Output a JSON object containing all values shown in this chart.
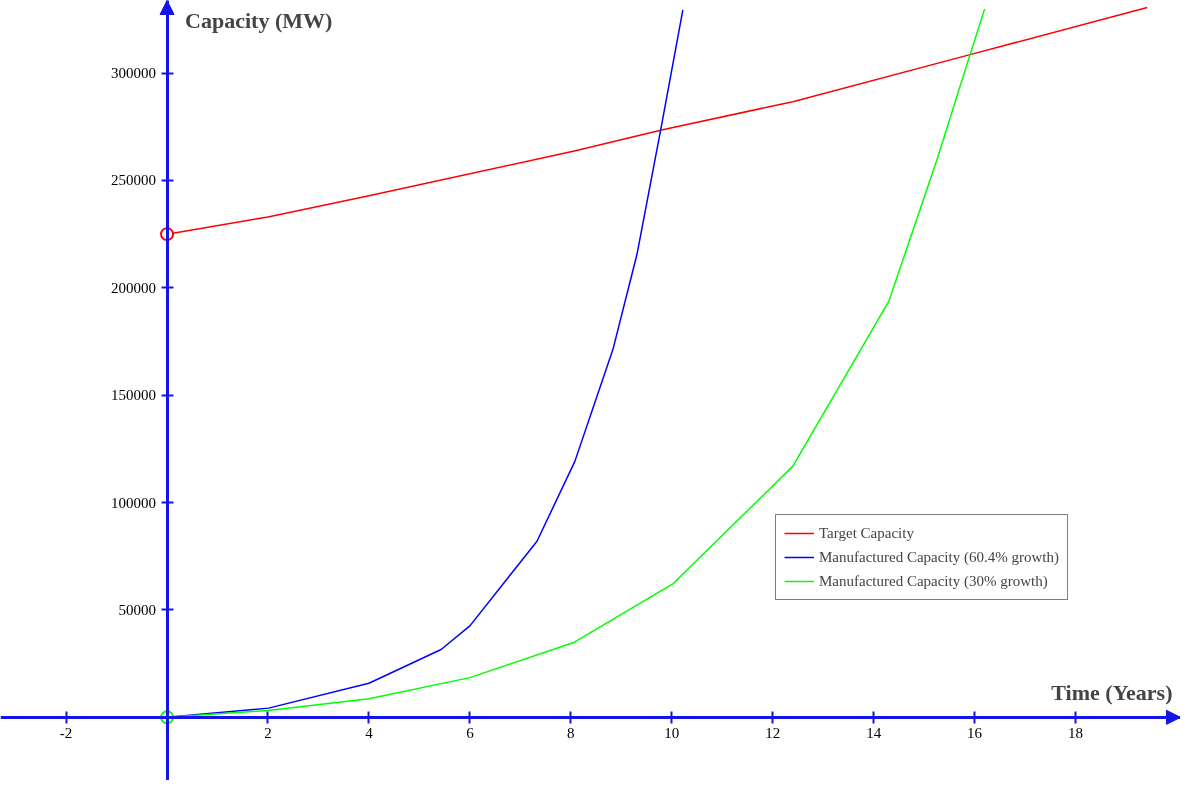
{
  "chart_data": {
    "type": "line",
    "xlabel": "Time (Years)",
    "ylabel": "Capacity (MW)",
    "xlim": [
      -3.3,
      20.08
    ],
    "ylim": [
      -29400,
      333800
    ],
    "xticks": [
      -2,
      2,
      4,
      6,
      8,
      10,
      12,
      14,
      16,
      18
    ],
    "yticks": [
      50000,
      100000,
      150000,
      200000,
      250000,
      300000
    ],
    "grid": false,
    "legend": "right",
    "series": [
      {
        "name": "Target Capacity",
        "color": "#ff0000",
        "x": [
          0,
          2,
          4,
          8.07,
          9.82,
          12.4,
          15.91,
          19.42
        ],
        "values": [
          225000,
          233000,
          242900,
          263700,
          273600,
          286700,
          308600,
          330500
        ]
      },
      {
        "name": "Manufactured Capacity (60.4% growth)",
        "color": "#0000ff",
        "x": [
          0,
          2.01,
          4.0,
          5.43,
          6.0,
          7.33,
          8.08,
          8.84,
          9.31,
          9.79,
          10.22
        ],
        "values": [
          0,
          4300,
          15900,
          31600,
          42600,
          82000,
          119200,
          171800,
          215500,
          274700,
          329400
        ]
      },
      {
        "name": "Manufactured Capacity (30% growth)",
        "color": "#00ff00",
        "x": [
          0,
          2.0,
          4.0,
          6.0,
          8.07,
          10.03,
          12.4,
          14.3,
          15.25,
          15.91,
          16.2
        ],
        "values": [
          0,
          3200,
          8700,
          18500,
          35000,
          62300,
          117000,
          193700,
          259300,
          308600,
          329900
        ]
      },
      {
        "type": "scatter",
        "marker": "circle",
        "color": "#ff0000",
        "x": [
          0
        ],
        "values": [
          225000
        ]
      },
      {
        "type": "scatter",
        "marker": "circle",
        "color": "#00ff00",
        "x": [
          0
        ],
        "values": [
          0
        ]
      }
    ]
  }
}
